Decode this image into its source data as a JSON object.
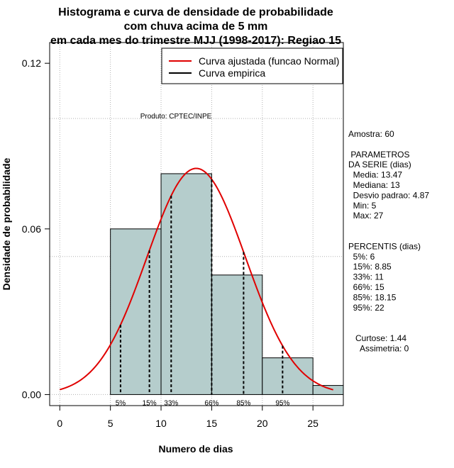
{
  "chart_data": {
    "type": "histogram",
    "title": [
      "Histograma e curva de densidade de probabilidade",
      "com chuva acima de 5 mm",
      "em cada mes do trimestre MJJ (1998-2017): Regiao 15"
    ],
    "xlabel": "Numero de dias",
    "ylabel": "Densidade de probabilidade",
    "xlim": [
      -1,
      28
    ],
    "ylim": [
      -0.004,
      0.1275
    ],
    "x_ticks": [
      0,
      5,
      10,
      15,
      20,
      25
    ],
    "y_ticks": [
      0.0,
      0.06,
      0.12
    ],
    "y_tick_labels": [
      "0.00",
      "0.06",
      "0.12"
    ],
    "grid_x": [
      0,
      5,
      10,
      15,
      20,
      25
    ],
    "grid_y": [
      0.0,
      0.05,
      0.1
    ],
    "bins": [
      {
        "start": 5,
        "end": 10,
        "density": 0.06
      },
      {
        "start": 10,
        "end": 15,
        "density": 0.08
      },
      {
        "start": 15,
        "end": 20,
        "density": 0.0433
      },
      {
        "start": 20,
        "end": 25,
        "density": 0.0133
      },
      {
        "start": 25,
        "end": 28,
        "density": 0.0033
      }
    ],
    "bar_color": "#b5cdcc",
    "normal_fit": {
      "mean": 13.47,
      "sd": 4.87,
      "from": 0,
      "to": 27,
      "color": "#e00000"
    },
    "percentiles": [
      {
        "x": 6,
        "label": "5%"
      },
      {
        "x": 8.85,
        "label": "15%"
      },
      {
        "x": 11,
        "label": "33%"
      },
      {
        "x": 15,
        "label": "66%"
      },
      {
        "x": 18.15,
        "label": "85%"
      },
      {
        "x": 22,
        "label": "95%"
      }
    ],
    "legend": {
      "placement": "top-right",
      "entries": [
        {
          "label": "Curva ajustada (funcao Normal)",
          "color": "#e00000"
        },
        {
          "label": "Curva empirica",
          "color": "#000000"
        }
      ]
    },
    "annotation": "Produto: CPTEC/INPE",
    "stats_lines": [
      "Amostra: 60",
      "",
      " PARAMETROS",
      "DA SERIE (dias)",
      "  Media: 13.47",
      "  Mediana: 13",
      "  Desvio padrao: 4.87",
      "  Min: 5",
      "  Max: 27",
      "",
      "",
      "PERCENTIS (dias)",
      "  5%: 6",
      "  15%: 8.85",
      "  33%: 11",
      "  66%: 15",
      "  85%: 18.15",
      "  95%: 22",
      "",
      "",
      "   Curtose: 1.44",
      "     Assimetria: 0"
    ]
  }
}
